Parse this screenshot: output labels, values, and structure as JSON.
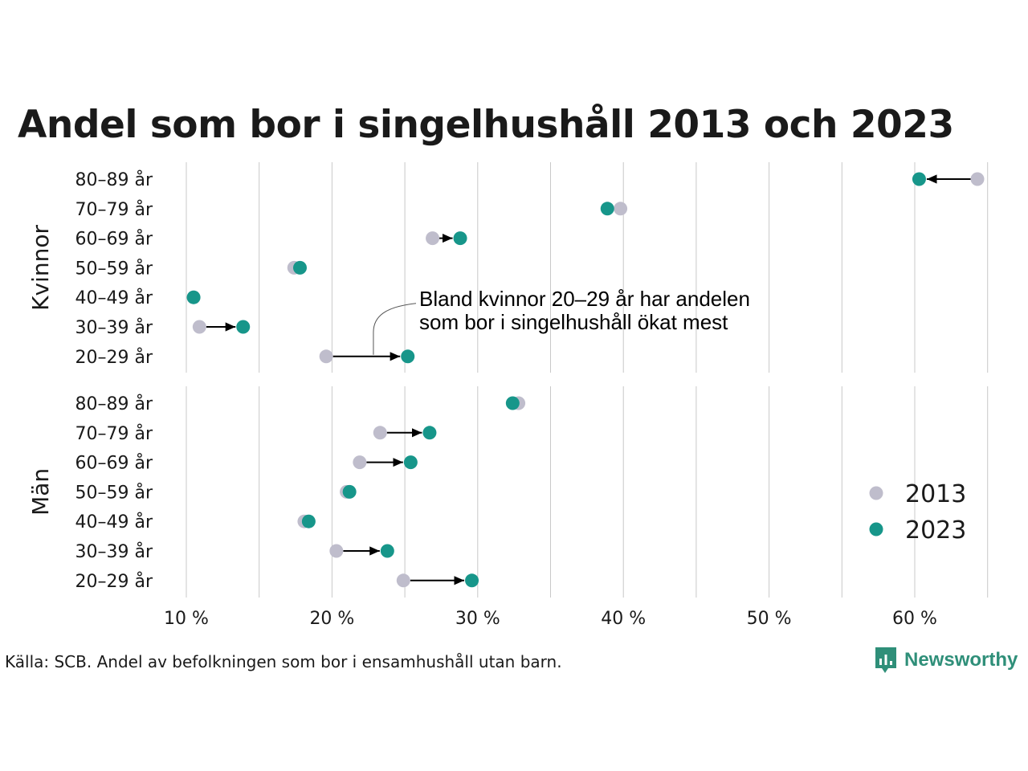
{
  "title": "Andel som bor i singelhushåll 2013 och 2023",
  "source": "Källa: SCB. Andel av befolkningen som bor i ensamhushåll utan barn.",
  "logo": {
    "text": "Newsworthy",
    "icon": "newsworthy-logo-icon",
    "color": "#2f8f79"
  },
  "chart_data": {
    "type": "scatter",
    "subtype": "dumbbell-arrow",
    "xlim": [
      6,
      66
    ],
    "x_ticks": [
      10,
      20,
      30,
      40,
      50,
      60
    ],
    "x_tick_labels": [
      "10 %",
      "20 %",
      "30 %",
      "40 %",
      "50 %",
      "60 %"
    ],
    "grid_lines": [
      10,
      15,
      20,
      25,
      30,
      35,
      40,
      45,
      50,
      55,
      60,
      65
    ],
    "grid": true,
    "categories": [
      "80–89 år",
      "70–79 år",
      "60–69 år",
      "50–59 år",
      "40–49 år",
      "30–39 år",
      "20–29 år"
    ],
    "series_names": [
      "2013",
      "2023"
    ],
    "colors": {
      "2013": "#bfbdcc",
      "2023": "#17968a",
      "arrow": "#000000",
      "grid": "#c8c8c8"
    },
    "panels": [
      {
        "name": "Kvinnor",
        "values_2013": [
          64.3,
          39.8,
          26.9,
          17.4,
          10.5,
          10.9,
          19.6
        ],
        "values_2023": [
          60.3,
          38.9,
          28.8,
          17.8,
          10.5,
          13.9,
          25.2
        ],
        "arrows": [
          true,
          false,
          true,
          false,
          false,
          true,
          true
        ]
      },
      {
        "name": "Män",
        "values_2013": [
          32.8,
          23.3,
          21.9,
          21.0,
          18.1,
          20.3,
          24.9
        ],
        "values_2023": [
          32.4,
          26.7,
          25.4,
          21.2,
          18.4,
          23.8,
          29.6
        ],
        "arrows": [
          false,
          true,
          true,
          false,
          false,
          true,
          true
        ]
      }
    ],
    "legend": {
      "position": "right",
      "entries": [
        "2013",
        "2023"
      ]
    },
    "annotation": {
      "lines": [
        "Bland kvinnor 20–29 år har andelen",
        "som bor i singelhushåll ökat mest"
      ],
      "target_panel": "Kvinnor",
      "target_category": "20–29 år"
    }
  }
}
